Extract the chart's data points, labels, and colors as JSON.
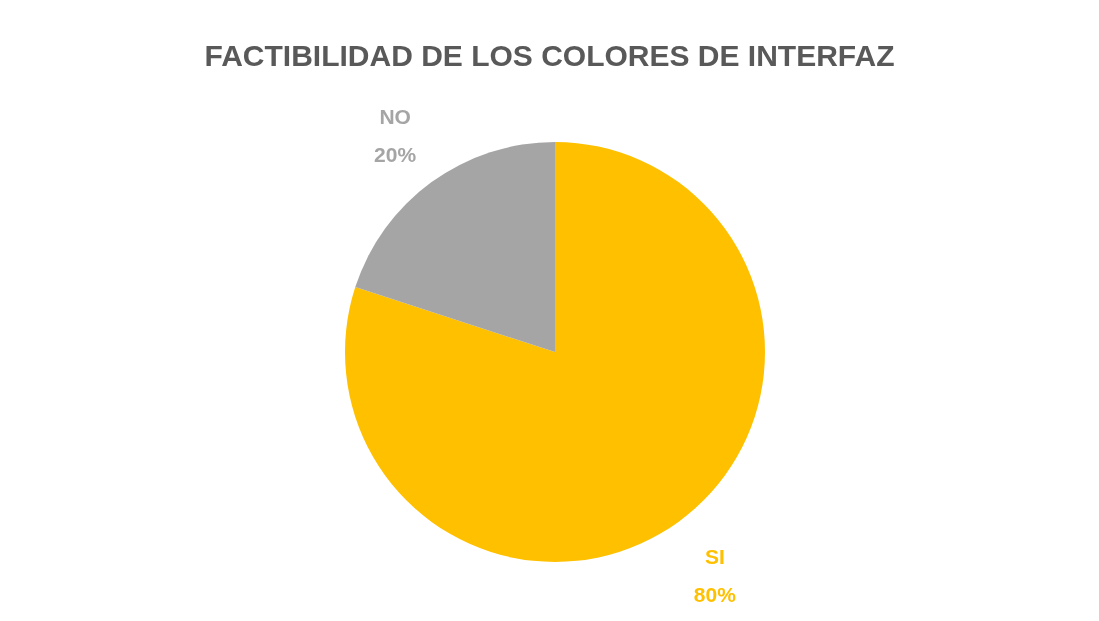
{
  "chart_data": {
    "type": "pie",
    "title": "FACTIBILIDAD DE LOS COLORES DE INTERFAZ",
    "categories": [
      "SI",
      "NO"
    ],
    "values": [
      80,
      20
    ],
    "colors": [
      "#ffc000",
      "#a5a5a5"
    ],
    "value_labels": [
      "80%",
      "20%"
    ],
    "legend": false
  }
}
